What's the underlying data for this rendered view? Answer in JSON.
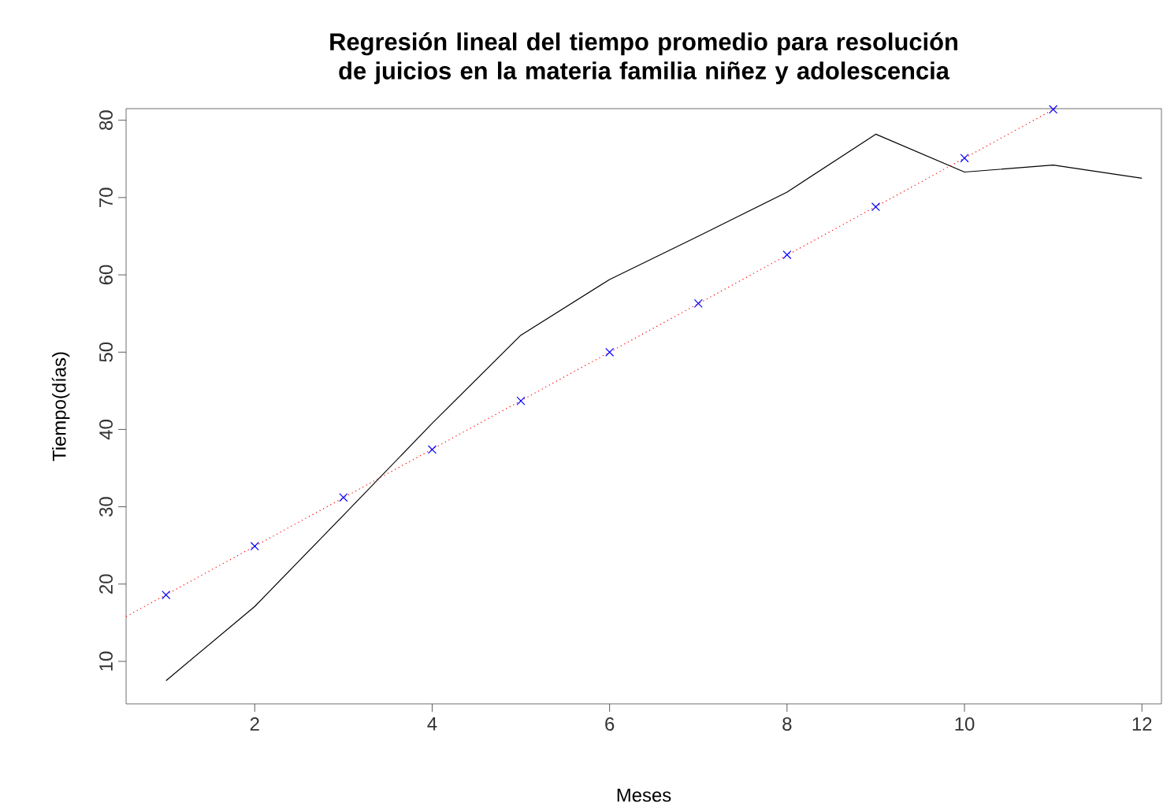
{
  "chart_data": {
    "type": "line",
    "title": "Regresión lineal del tiempo promedio para resolución de juicios en la materia familia niñez y adolescencia",
    "xlabel": "Meses",
    "ylabel": "Tiempo(días)",
    "x": [
      1,
      2,
      3,
      4,
      5,
      6,
      7,
      8,
      9,
      10,
      11,
      12
    ],
    "series": [
      {
        "color": "#000000",
        "marker": "none",
        "line_style": "solid",
        "values": [
          7.5,
          17.1,
          28.9,
          40.8,
          52.2,
          59.4,
          65.0,
          70.7,
          78.2,
          73.3,
          74.2,
          72.5
        ]
      },
      {
        "type": "scatter",
        "color": "#0000ff",
        "marker": "cross",
        "x": [
          1,
          2,
          3,
          4,
          5,
          6,
          7,
          8,
          9,
          10,
          11
        ],
        "values": [
          18.6,
          24.9,
          31.2,
          37.4,
          43.7,
          50.0,
          56.3,
          62.6,
          68.8,
          75.1,
          81.4
        ]
      },
      {
        "color": "#ff0000",
        "marker": "none",
        "line_style": "dotted",
        "x": [
          0.55,
          11.02
        ],
        "values": [
          15.8,
          81.5
        ]
      }
    ],
    "xlim": [
      0.55,
      12.22
    ],
    "ylim": [
      4.5,
      81.5
    ],
    "xticks": [
      2,
      4,
      6,
      8,
      10,
      12
    ],
    "yticks": [
      10,
      20,
      30,
      40,
      50,
      60,
      70,
      80
    ]
  }
}
